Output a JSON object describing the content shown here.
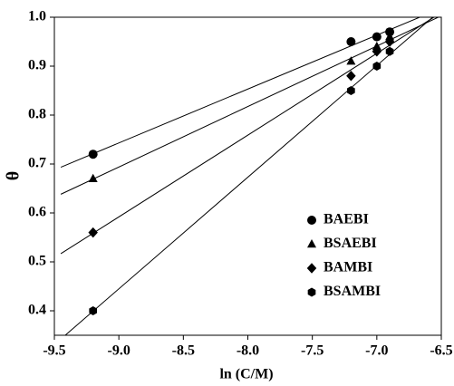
{
  "chart_data": {
    "type": "scatter",
    "x_label": "ln (C/M)",
    "y_label": "θ",
    "xlim": [
      -9.5,
      -6.5
    ],
    "ylim": [
      0.35,
      1.0
    ],
    "xticks": [
      -9.5,
      {
        "value": -9,
        "label": "-9.0"
      },
      -8.5,
      {
        "value": -8,
        "label": "-8.0"
      },
      -7.5,
      {
        "value": -7,
        "label": "-7.0"
      },
      -6.5
    ],
    "yticks": [
      0.4,
      0.5,
      0.6,
      0.7,
      0.8,
      0.9,
      {
        "value": 1,
        "label": "1.0"
      }
    ],
    "fit_lines": true,
    "legend": "lower right",
    "series": [
      {
        "name": "BAEBI",
        "marker": "circle",
        "color": "#000000",
        "x": [
          -9.2,
          -7.2,
          -7.0,
          -6.9
        ],
        "values": [
          0.72,
          0.95,
          0.96,
          0.97
        ]
      },
      {
        "name": "BSAEBI",
        "marker": "triangle",
        "color": "#000000",
        "x": [
          -9.2,
          -7.2,
          -7.0,
          -6.9
        ],
        "values": [
          0.67,
          0.91,
          0.94,
          0.96
        ]
      },
      {
        "name": "BAMBI",
        "marker": "diamond",
        "color": "#000000",
        "x": [
          -9.2,
          -7.2,
          -7.0,
          -6.9
        ],
        "values": [
          0.56,
          0.88,
          0.93,
          0.95
        ]
      },
      {
        "name": "BSAMBI",
        "marker": "hexagon",
        "color": "#000000",
        "x": [
          -9.2,
          -7.2,
          -7.0,
          -6.9
        ],
        "values": [
          0.4,
          0.85,
          0.9,
          0.93
        ]
      }
    ]
  }
}
